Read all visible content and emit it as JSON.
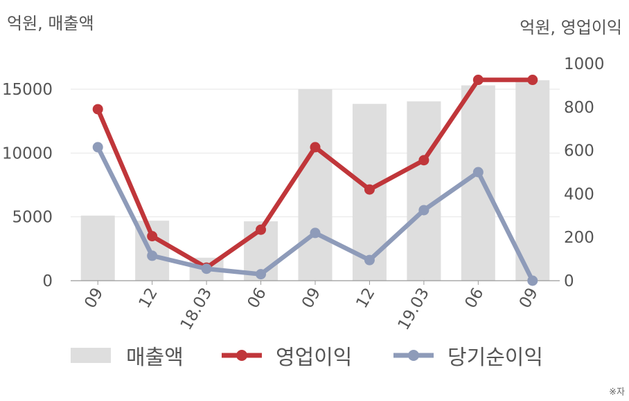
{
  "units": {
    "left": "억원, 매출액",
    "right": "억원, 영업이익"
  },
  "note": "※자",
  "colors": {
    "revenue": "#dedede",
    "operating": "#c0363a",
    "net": "#8e9bb9",
    "grid": "#e6e6e6",
    "axis": "#999999",
    "text": "#555555"
  },
  "legend": [
    {
      "label": "매출액",
      "kind": "bar",
      "color": "#dedede"
    },
    {
      "label": "영업이익",
      "kind": "line",
      "color": "#c0363a"
    },
    {
      "label": "당기순이익",
      "kind": "line",
      "color": "#8e9bb9"
    }
  ],
  "chart_data": {
    "type": "bar",
    "categories": [
      "09",
      "12",
      "18.03",
      "06",
      "09",
      "12",
      "19.03",
      "06",
      "09"
    ],
    "series": [
      {
        "name": "매출액",
        "type": "bar",
        "axis": "left",
        "values": [
          5100,
          4700,
          1800,
          4650,
          15000,
          13850,
          14050,
          15300,
          15700
        ]
      },
      {
        "name": "영업이익",
        "type": "line",
        "axis": "right",
        "values": [
          790,
          205,
          60,
          235,
          615,
          420,
          555,
          925,
          925
        ]
      },
      {
        "name": "당기순이익",
        "type": "line",
        "axis": "right",
        "values": [
          615,
          115,
          55,
          30,
          220,
          95,
          325,
          500,
          0
        ]
      }
    ],
    "y_left": {
      "min": 0,
      "max": 15000,
      "ticks": [
        0,
        5000,
        10000,
        15000
      ]
    },
    "y_right": {
      "min": 0,
      "max": 1000,
      "ticks": [
        0,
        200,
        400,
        600,
        800,
        1000
      ]
    },
    "grid": true,
    "legend_position": "bottom"
  }
}
